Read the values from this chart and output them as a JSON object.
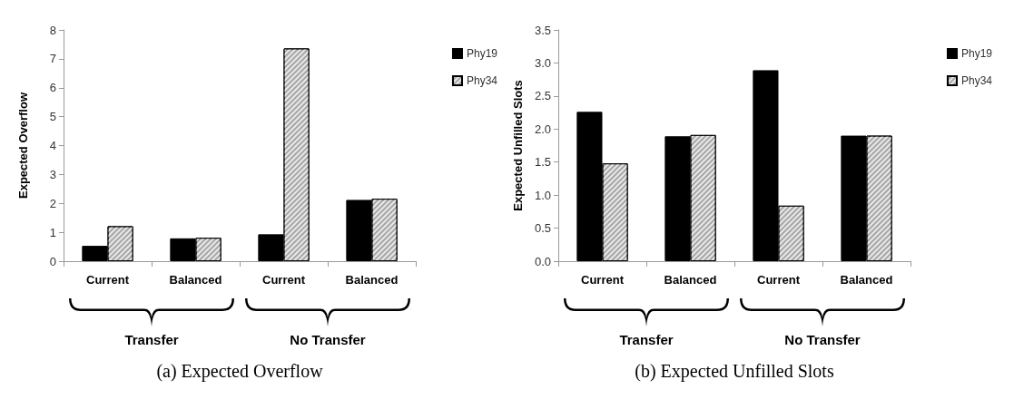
{
  "chart_data": [
    {
      "type": "bar",
      "title": "(a) Expected Overflow",
      "ylabel": "Expected Overflow",
      "categories": [
        "Current",
        "Balanced",
        "Current",
        "Balanced"
      ],
      "series": [
        {
          "name": "Phy19",
          "color": "#000000",
          "values": [
            0.53,
            0.79,
            0.93,
            2.12
          ]
        },
        {
          "name": "Phy34",
          "color": "#a6a6a6",
          "values": [
            1.21,
            0.81,
            7.36,
            2.16
          ]
        }
      ],
      "ylim": [
        0,
        8
      ],
      "yticks": [
        0,
        1,
        2,
        3,
        4,
        5,
        6,
        7,
        8
      ],
      "grid": false,
      "legend": "top right",
      "annotations": [
        "Transfer",
        "No Transfer"
      ]
    },
    {
      "type": "bar",
      "title": "(b) Expected Unfilled Slots",
      "ylabel": "Expected Unfilled Slots",
      "categories": [
        "Current",
        "Balanced",
        "Current",
        "Balanced"
      ],
      "series": [
        {
          "name": "Phy19",
          "color": "#000000",
          "values": [
            2.26,
            1.89,
            2.89,
            1.9
          ]
        },
        {
          "name": "Phy34",
          "color": "#a6a6a6",
          "values": [
            1.48,
            1.91,
            0.84,
            1.9
          ]
        }
      ],
      "ylim": [
        0,
        3.5
      ],
      "yticks": [
        {
          "value": 0,
          "label": "0.0"
        },
        {
          "value": 0.5,
          "label": "0.5"
        },
        {
          "value": 1,
          "label": "1.0"
        },
        {
          "value": 1.5,
          "label": "1.5"
        },
        {
          "value": 2,
          "label": "2.0"
        },
        {
          "value": 2.5,
          "label": "2.5"
        },
        {
          "value": 3,
          "label": "3.0"
        },
        {
          "value": 3.5,
          "label": "3.5"
        }
      ],
      "grid": false,
      "legend": "top right",
      "annotations": [
        "Transfer",
        "No Transfer"
      ]
    }
  ]
}
